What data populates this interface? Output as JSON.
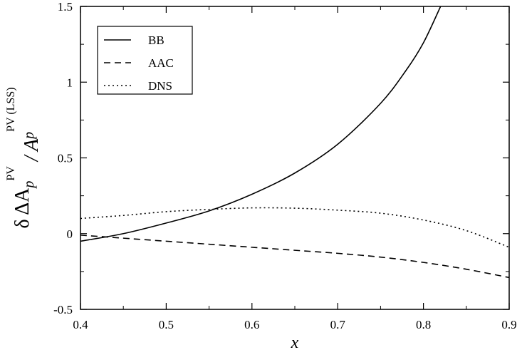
{
  "chart_data": {
    "type": "line",
    "xlabel": "x",
    "ylabel": "δ ΔA_p^PV / A_p^PV (LSS)",
    "xlim": [
      0.4,
      0.9
    ],
    "ylim": [
      -0.5,
      1.5
    ],
    "x_ticks": [
      "0.4",
      "0.5",
      "0.6",
      "0.7",
      "0.8",
      "0.9"
    ],
    "y_ticks": [
      "-0.5",
      "0",
      "0.5",
      "1",
      "1.5"
    ],
    "grid": false,
    "legend_position": "top-left",
    "series": [
      {
        "name": "BB",
        "style": "solid",
        "x": [
          0.4,
          0.45,
          0.5,
          0.55,
          0.6,
          0.65,
          0.7,
          0.75,
          0.78,
          0.8,
          0.82
        ],
        "y": [
          -0.05,
          0.0,
          0.07,
          0.15,
          0.26,
          0.4,
          0.59,
          0.86,
          1.08,
          1.26,
          1.5
        ]
      },
      {
        "name": "AAC",
        "style": "dashed",
        "x": [
          0.4,
          0.45,
          0.5,
          0.55,
          0.6,
          0.65,
          0.7,
          0.75,
          0.8,
          0.85,
          0.9
        ],
        "y": [
          -0.01,
          -0.03,
          -0.05,
          -0.07,
          -0.09,
          -0.11,
          -0.13,
          -0.155,
          -0.19,
          -0.235,
          -0.29
        ]
      },
      {
        "name": "DNS",
        "style": "dotted",
        "x": [
          0.4,
          0.45,
          0.5,
          0.55,
          0.6,
          0.65,
          0.7,
          0.75,
          0.8,
          0.85,
          0.9
        ],
        "y": [
          0.1,
          0.12,
          0.145,
          0.16,
          0.17,
          0.168,
          0.155,
          0.135,
          0.09,
          0.02,
          -0.09
        ]
      }
    ]
  }
}
